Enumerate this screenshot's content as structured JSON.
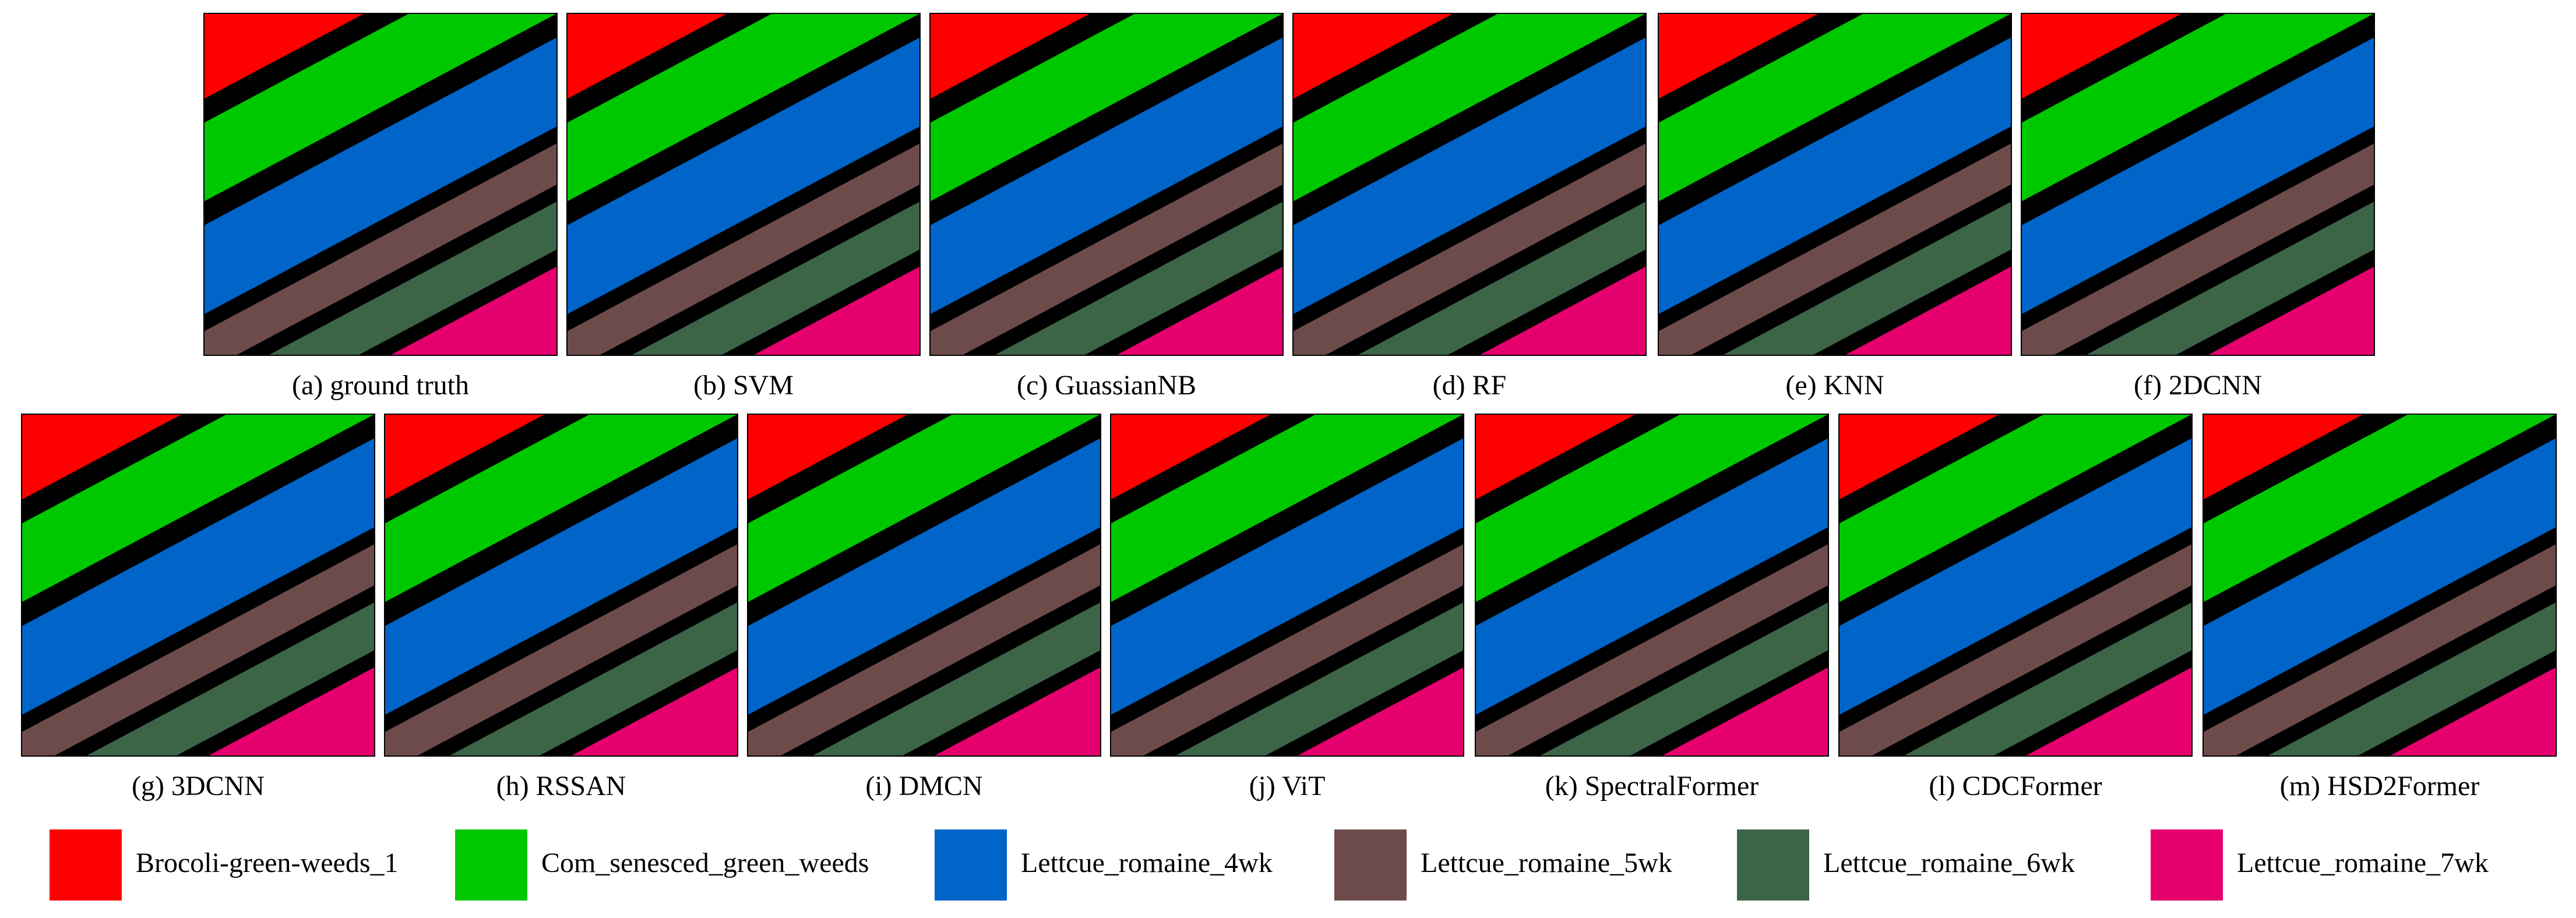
{
  "panels": [
    {
      "caption": "(a) ground truth"
    },
    {
      "caption": "(b) SVM"
    },
    {
      "caption": "(c) GuassianNB"
    },
    {
      "caption": "(d) RF"
    },
    {
      "caption": "(e) KNN"
    },
    {
      "caption": "(f) 2DCNN"
    },
    {
      "caption": "(g) 3DCNN"
    },
    {
      "caption": "(h) RSSAN"
    },
    {
      "caption": "(i) DMCN"
    },
    {
      "caption": "(j) ViT"
    },
    {
      "caption": "(k) SpectralFormer"
    },
    {
      "caption": "(l) CDCFormer"
    },
    {
      "caption": "(m) HSD2Former"
    }
  ],
  "legend": [
    {
      "label": "Brocoli-green-weeds_1",
      "color": "#ff0000"
    },
    {
      "label": "Com_senesced_green_weeds",
      "color": "#00c800"
    },
    {
      "label": "Lettcue_romaine_4wk",
      "color": "#0064c8"
    },
    {
      "label": "Lettcue_romaine_5wk",
      "color": "#6e4b4b"
    },
    {
      "label": "Lettcue_romaine_6wk",
      "color": "#3c6446"
    },
    {
      "label": "Lettcue_romaine_7wk",
      "color": "#e6006e"
    }
  ]
}
